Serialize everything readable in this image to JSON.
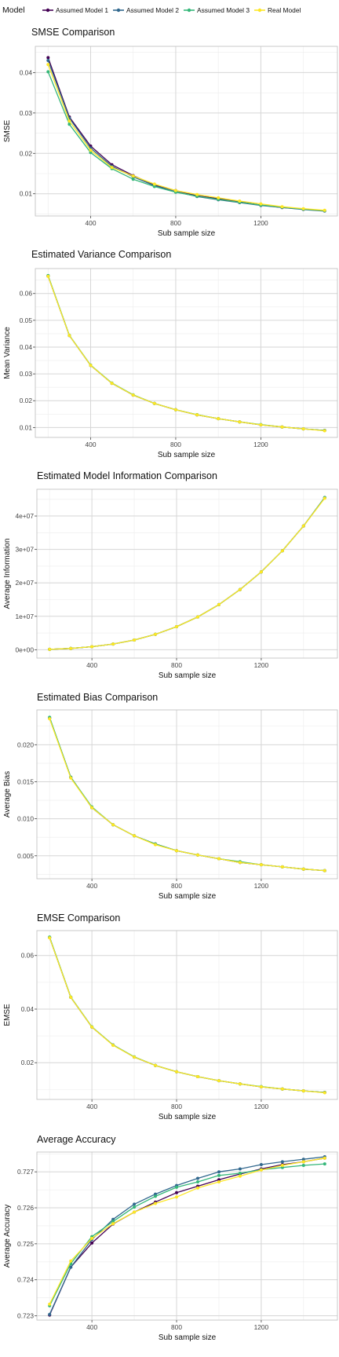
{
  "legend": {
    "title": "Model",
    "entries": [
      {
        "label": "Assumed Model 1",
        "color": "#440154"
      },
      {
        "label": "Assumed Model 2",
        "color": "#31688e"
      },
      {
        "label": "Assumed Model 3",
        "color": "#35b779"
      },
      {
        "label": "Real Model",
        "color": "#fde725"
      }
    ]
  },
  "chart_data": [
    {
      "type": "line",
      "title": "SMSE Comparison",
      "xlabel": "Sub sample size",
      "ylabel": "SMSE",
      "x_ticks": [
        "400",
        "800",
        "1200"
      ],
      "y_ticks": [
        {
          "v": 0.01,
          "label": "0.01"
        },
        {
          "v": 0.02,
          "label": "0.02"
        },
        {
          "v": 0.03,
          "label": "0.03"
        },
        {
          "v": 0.04,
          "label": "0.04"
        }
      ],
      "xlim": [
        140,
        1560
      ],
      "ylim": [
        0.0045,
        0.0465
      ],
      "x": [
        200,
        300,
        400,
        500,
        600,
        700,
        800,
        900,
        1000,
        1100,
        1200,
        1300,
        1400,
        1500
      ],
      "series": [
        {
          "name": "Assumed Model 1",
          "values": [
            0.0437,
            0.029,
            0.0218,
            0.0172,
            0.0145,
            0.0122,
            0.0108,
            0.0095,
            0.0088,
            0.008,
            0.0072,
            0.0066,
            0.0062,
            0.0058
          ]
        },
        {
          "name": "Assumed Model 2",
          "values": [
            0.043,
            0.0287,
            0.0213,
            0.0168,
            0.0142,
            0.012,
            0.0105,
            0.0093,
            0.0085,
            0.0078,
            0.0071,
            0.0066,
            0.0061,
            0.0057
          ]
        },
        {
          "name": "Assumed Model 3",
          "values": [
            0.0402,
            0.0272,
            0.0202,
            0.0162,
            0.0136,
            0.0118,
            0.0104,
            0.0094,
            0.0086,
            0.0079,
            0.0072,
            0.0067,
            0.0062,
            0.0058
          ]
        },
        {
          "name": "Real Model",
          "values": [
            0.042,
            0.028,
            0.0208,
            0.0165,
            0.0144,
            0.0124,
            0.0108,
            0.0098,
            0.009,
            0.0082,
            0.0075,
            0.0068,
            0.0063,
            0.0059
          ]
        }
      ]
    },
    {
      "type": "line",
      "title": "Estimated Variance Comparison",
      "xlabel": "Sub sample size",
      "ylabel": "Mean Variance",
      "x_ticks": [
        "400",
        "800",
        "1200"
      ],
      "y_ticks": [
        {
          "v": 0.01,
          "label": "0.01"
        },
        {
          "v": 0.02,
          "label": "0.02"
        },
        {
          "v": 0.03,
          "label": "0.03"
        },
        {
          "v": 0.04,
          "label": "0.04"
        },
        {
          "v": 0.05,
          "label": "0.05"
        },
        {
          "v": 0.06,
          "label": "0.06"
        }
      ],
      "xlim": [
        140,
        1560
      ],
      "ylim": [
        0.0063,
        0.0693
      ],
      "x": [
        200,
        300,
        400,
        500,
        600,
        700,
        800,
        900,
        1000,
        1100,
        1200,
        1300,
        1400,
        1500
      ],
      "series": [
        {
          "name": "Assumed Model 1",
          "values": [
            0.0665,
            0.0443,
            0.0332,
            0.0265,
            0.0221,
            0.019,
            0.0166,
            0.0147,
            0.0133,
            0.0121,
            0.011,
            0.0102,
            0.0095,
            0.0089
          ]
        },
        {
          "name": "Assumed Model 2",
          "values": [
            0.0665,
            0.0443,
            0.0332,
            0.0265,
            0.0221,
            0.019,
            0.0166,
            0.0147,
            0.0133,
            0.0121,
            0.011,
            0.0102,
            0.0095,
            0.0089
          ]
        },
        {
          "name": "Assumed Model 3",
          "values": [
            0.0667,
            0.0444,
            0.0333,
            0.0266,
            0.0222,
            0.019,
            0.0166,
            0.0148,
            0.0133,
            0.0121,
            0.0111,
            0.0102,
            0.0095,
            0.0089
          ]
        },
        {
          "name": "Real Model",
          "values": [
            0.0664,
            0.0443,
            0.0332,
            0.0265,
            0.0221,
            0.019,
            0.0166,
            0.0147,
            0.0133,
            0.0121,
            0.011,
            0.0102,
            0.0095,
            0.0088
          ]
        }
      ]
    },
    {
      "type": "line",
      "title": "Estimated Model Information Comparison",
      "xlabel": "Sub sample size",
      "ylabel": "Average Information",
      "x_ticks": [
        "400",
        "800",
        "1200"
      ],
      "y_ticks": [
        {
          "v": 0,
          "label": "0e+00"
        },
        {
          "v": 10000000,
          "label": "1e+07"
        },
        {
          "v": 20000000,
          "label": "2e+07"
        },
        {
          "v": 30000000,
          "label": "3e+07"
        },
        {
          "v": 40000000,
          "label": "4e+07"
        }
      ],
      "xlim": [
        140,
        1560
      ],
      "ylim": [
        -2500000,
        48000000
      ],
      "x": [
        200,
        300,
        400,
        500,
        600,
        700,
        800,
        900,
        1000,
        1100,
        1200,
        1300,
        1400,
        1500
      ],
      "series": [
        {
          "name": "Assumed Model 1",
          "values": [
            100000,
            400000,
            900000,
            1700000,
            2900000,
            4600000,
            6900000,
            9800000,
            13500000,
            18000000,
            23300000,
            29600000,
            37000000,
            45500000
          ]
        },
        {
          "name": "Assumed Model 2",
          "values": [
            100000,
            400000,
            900000,
            1700000,
            2900000,
            4600000,
            6900000,
            9800000,
            13500000,
            18000000,
            23300000,
            29600000,
            37000000,
            45500000
          ]
        },
        {
          "name": "Assumed Model 3",
          "values": [
            100000,
            400000,
            900000,
            1700000,
            2900000,
            4600000,
            6900000,
            9800000,
            13500000,
            18000000,
            23300000,
            29600000,
            37000000,
            45500000
          ]
        },
        {
          "name": "Real Model",
          "values": [
            100000,
            400000,
            900000,
            1700000,
            2900000,
            4600000,
            6900000,
            9800000,
            13500000,
            18000000,
            23300000,
            29600000,
            37000000,
            45300000
          ]
        }
      ]
    },
    {
      "type": "line",
      "title": "Estimated Bias Comparison",
      "xlabel": "Sub sample size",
      "ylabel": "Average Bias",
      "x_ticks": [
        "400",
        "800",
        "1200"
      ],
      "y_ticks": [
        {
          "v": 0.005,
          "label": "0.005"
        },
        {
          "v": 0.01,
          "label": "0.010"
        },
        {
          "v": 0.015,
          "label": "0.015"
        },
        {
          "v": 0.02,
          "label": "0.020"
        }
      ],
      "xlim": [
        140,
        1560
      ],
      "ylim": [
        0.0019,
        0.0247
      ],
      "x": [
        200,
        300,
        400,
        500,
        600,
        700,
        800,
        900,
        1000,
        1100,
        1200,
        1300,
        1400,
        1500
      ],
      "series": [
        {
          "name": "Assumed Model 1",
          "values": [
            0.0236,
            0.0156,
            0.0115,
            0.0092,
            0.0077,
            0.0066,
            0.0057,
            0.0051,
            0.0046,
            0.0041,
            0.0038,
            0.0035,
            0.0032,
            0.003
          ]
        },
        {
          "name": "Assumed Model 2",
          "values": [
            0.0236,
            0.0156,
            0.0115,
            0.0092,
            0.0077,
            0.0066,
            0.0057,
            0.0051,
            0.0046,
            0.0041,
            0.0038,
            0.0035,
            0.0032,
            0.003
          ]
        },
        {
          "name": "Assumed Model 3",
          "values": [
            0.0237,
            0.0156,
            0.0116,
            0.0092,
            0.0077,
            0.0066,
            0.0057,
            0.0051,
            0.0046,
            0.0042,
            0.0038,
            0.0035,
            0.0032,
            0.003
          ]
        },
        {
          "name": "Real Model",
          "values": [
            0.0235,
            0.0155,
            0.0115,
            0.0092,
            0.0077,
            0.0065,
            0.0057,
            0.0051,
            0.0046,
            0.0041,
            0.0038,
            0.0035,
            0.0032,
            0.003
          ]
        }
      ]
    },
    {
      "type": "line",
      "title": "EMSE Comparison",
      "xlabel": "Sub sample size",
      "ylabel": "EMSE",
      "x_ticks": [
        "400",
        "800",
        "1200"
      ],
      "y_ticks": [
        {
          "v": 0.02,
          "label": "0.02"
        },
        {
          "v": 0.04,
          "label": "0.04"
        },
        {
          "v": 0.06,
          "label": "0.06"
        }
      ],
      "xlim": [
        140,
        1560
      ],
      "ylim": [
        0.0063,
        0.0693
      ],
      "x": [
        200,
        300,
        400,
        500,
        600,
        700,
        800,
        900,
        1000,
        1100,
        1200,
        1300,
        1400,
        1500
      ],
      "series": [
        {
          "name": "Assumed Model 1",
          "values": [
            0.0667,
            0.0444,
            0.0333,
            0.0266,
            0.0221,
            0.019,
            0.0166,
            0.0148,
            0.0133,
            0.0121,
            0.011,
            0.0102,
            0.0095,
            0.0089
          ]
        },
        {
          "name": "Assumed Model 2",
          "values": [
            0.0667,
            0.0444,
            0.0333,
            0.0266,
            0.0221,
            0.019,
            0.0166,
            0.0148,
            0.0133,
            0.0121,
            0.011,
            0.0102,
            0.0095,
            0.0089
          ]
        },
        {
          "name": "Assumed Model 3",
          "values": [
            0.0669,
            0.0445,
            0.0334,
            0.0266,
            0.0222,
            0.019,
            0.0166,
            0.0148,
            0.0133,
            0.0121,
            0.0111,
            0.0102,
            0.0095,
            0.0089
          ]
        },
        {
          "name": "Real Model",
          "values": [
            0.0666,
            0.0444,
            0.0333,
            0.0265,
            0.0221,
            0.019,
            0.0166,
            0.0148,
            0.0133,
            0.0121,
            0.011,
            0.0102,
            0.0095,
            0.0088
          ]
        }
      ]
    },
    {
      "type": "line",
      "title": "Average Accuracy",
      "xlabel": "Sub sample size",
      "ylabel": "Average Accuracy",
      "x_ticks": [
        "400",
        "800",
        "1200"
      ],
      "y_ticks": [
        {
          "v": 0.723,
          "label": "0.723"
        },
        {
          "v": 0.724,
          "label": "0.724"
        },
        {
          "v": 0.725,
          "label": "0.725"
        },
        {
          "v": 0.726,
          "label": "0.726"
        },
        {
          "v": 0.727,
          "label": "0.727"
        }
      ],
      "xlim": [
        140,
        1560
      ],
      "ylim": [
        0.72288,
        0.72755
      ],
      "x": [
        200,
        300,
        400,
        500,
        600,
        700,
        800,
        900,
        1000,
        1100,
        1200,
        1300,
        1400,
        1500
      ],
      "series": [
        {
          "name": "Assumed Model 1",
          "values": [
            0.72302,
            0.72435,
            0.72502,
            0.72555,
            0.72588,
            0.72616,
            0.72642,
            0.7266,
            0.72678,
            0.72694,
            0.72708,
            0.7272,
            0.72728,
            0.72738
          ]
        },
        {
          "name": "Assumed Model 2",
          "values": [
            0.72304,
            0.72435,
            0.72512,
            0.72568,
            0.7261,
            0.72638,
            0.72662,
            0.72682,
            0.727,
            0.72708,
            0.7272,
            0.72728,
            0.72735,
            0.72742
          ]
        },
        {
          "name": "Assumed Model 3",
          "values": [
            0.72328,
            0.72445,
            0.7252,
            0.72562,
            0.72602,
            0.72632,
            0.72657,
            0.72672,
            0.7269,
            0.72696,
            0.72706,
            0.72712,
            0.72718,
            0.72722
          ]
        },
        {
          "name": "Real Model",
          "values": [
            0.72332,
            0.72452,
            0.72515,
            0.72556,
            0.72588,
            0.72612,
            0.7263,
            0.72655,
            0.72672,
            0.72688,
            0.72705,
            0.72718,
            0.72728,
            0.72738
          ]
        }
      ]
    }
  ]
}
